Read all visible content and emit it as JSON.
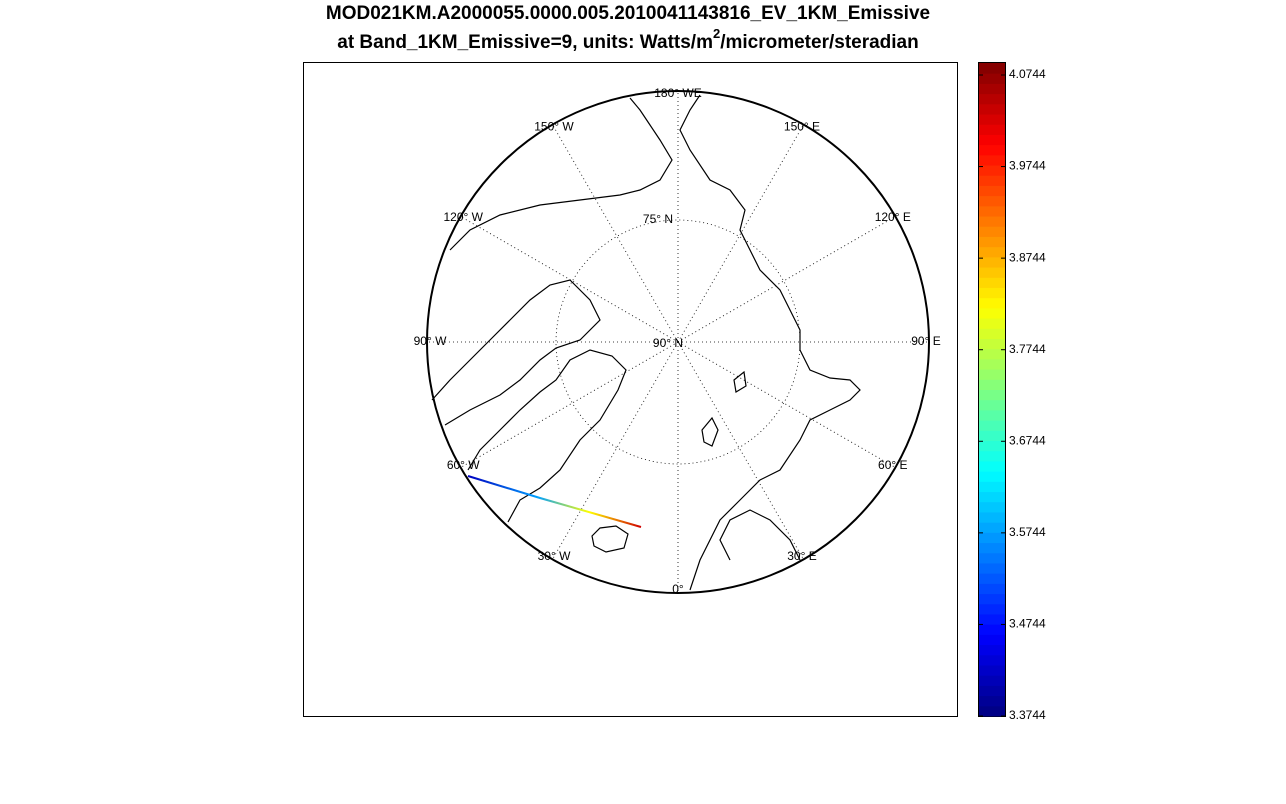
{
  "chart_data": {
    "type": "polar-map",
    "title": "MOD021KM.A2000055.0000.005.2010041143816_EV_1KM_Emissive",
    "subtitle": {
      "before": "at Band_1KM_Emissive=9, units: Watts/m",
      "sup": "2",
      "after": "/micrometer/steradian"
    },
    "meridian_labels": [
      "0°",
      "30° E",
      "60° E",
      "90° E",
      "120° E",
      "150° E",
      "180° WE",
      "150° W",
      "120° W",
      "90° W",
      "60° W",
      "30° W"
    ],
    "parallel_labels": [
      "90° N",
      "75° N"
    ],
    "colorbar": {
      "clim": [
        3.3744,
        4.0875
      ],
      "ticks": [
        3.3744,
        3.4744,
        3.5744,
        3.6744,
        3.7744,
        3.8744,
        3.9744,
        4.0744
      ]
    }
  }
}
